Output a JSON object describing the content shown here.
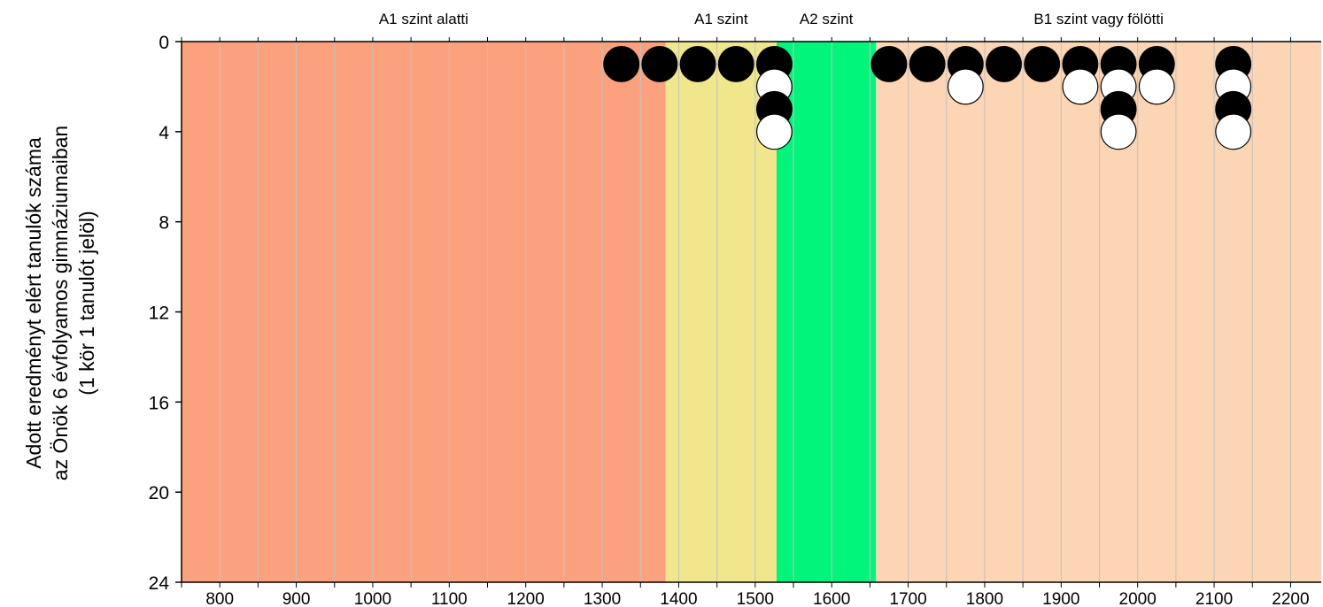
{
  "chart_data": {
    "type": "scatter",
    "title": "",
    "xlabel": "",
    "ylabel_lines": [
      "Adott eredményt elért tanulók száma",
      "az Önök 6 évfolyamos gimnáziumaiban",
      "(1 kör 1 tanulót jelöl)"
    ],
    "xlim": [
      750,
      2240
    ],
    "ylim": [
      0,
      24
    ],
    "y_inverted": true,
    "x_ticks": [
      800,
      900,
      1000,
      1100,
      1200,
      1300,
      1400,
      1500,
      1600,
      1700,
      1800,
      1900,
      2000,
      2100,
      2200
    ],
    "y_ticks": [
      0,
      4,
      8,
      12,
      16,
      20,
      24
    ],
    "grid": true,
    "bands": [
      {
        "label": "A1 szint alatti",
        "from": 750,
        "to": 1383,
        "color": "#fca17d"
      },
      {
        "label": "A1 szint",
        "from": 1383,
        "to": 1528,
        "color": "#f0e68c"
      },
      {
        "label": "A2 szint",
        "from": 1528,
        "to": 1658,
        "color": "#00f57a"
      },
      {
        "label": "B1 szint vagy fölötti",
        "from": 1658,
        "to": 2240,
        "color": "#fcd5b4"
      }
    ],
    "colors": {
      "filled": "#000000",
      "open": "#ffffff"
    },
    "points": [
      {
        "x": 1325,
        "y": 1,
        "fill": "filled"
      },
      {
        "x": 1375,
        "y": 1,
        "fill": "filled"
      },
      {
        "x": 1425,
        "y": 1,
        "fill": "filled"
      },
      {
        "x": 1475,
        "y": 1,
        "fill": "filled"
      },
      {
        "x": 1525,
        "y": 1,
        "fill": "filled"
      },
      {
        "x": 1525,
        "y": 2,
        "fill": "open"
      },
      {
        "x": 1525,
        "y": 3,
        "fill": "filled"
      },
      {
        "x": 1525,
        "y": 4,
        "fill": "open"
      },
      {
        "x": 1675,
        "y": 1,
        "fill": "filled"
      },
      {
        "x": 1725,
        "y": 1,
        "fill": "filled"
      },
      {
        "x": 1775,
        "y": 1,
        "fill": "filled"
      },
      {
        "x": 1775,
        "y": 2,
        "fill": "open"
      },
      {
        "x": 1825,
        "y": 1,
        "fill": "filled"
      },
      {
        "x": 1875,
        "y": 1,
        "fill": "filled"
      },
      {
        "x": 1925,
        "y": 1,
        "fill": "filled"
      },
      {
        "x": 1925,
        "y": 2,
        "fill": "open"
      },
      {
        "x": 1975,
        "y": 1,
        "fill": "filled"
      },
      {
        "x": 1975,
        "y": 2,
        "fill": "open"
      },
      {
        "x": 1975,
        "y": 3,
        "fill": "filled"
      },
      {
        "x": 1975,
        "y": 4,
        "fill": "open"
      },
      {
        "x": 2025,
        "y": 1,
        "fill": "filled"
      },
      {
        "x": 2025,
        "y": 2,
        "fill": "open"
      },
      {
        "x": 2125,
        "y": 1,
        "fill": "filled"
      },
      {
        "x": 2125,
        "y": 2,
        "fill": "open"
      },
      {
        "x": 2125,
        "y": 3,
        "fill": "filled"
      },
      {
        "x": 2125,
        "y": 4,
        "fill": "open"
      }
    ]
  }
}
